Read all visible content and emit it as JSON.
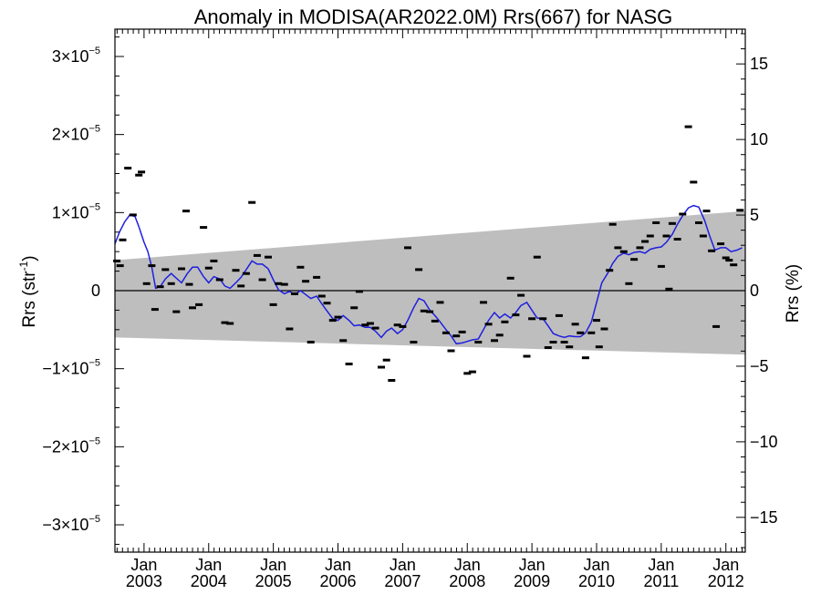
{
  "chart_data": {
    "type": "scatter",
    "title": "Anomaly in MODISA(AR2022.0M) Rrs(667) for NASG",
    "ylabel_left": {
      "base": "Rrs (str",
      "sup": "-1",
      "close": ")"
    },
    "ylabel_right": "Rrs (%)",
    "xlim": [
      2002.55,
      2012.3
    ],
    "ylim_left": [
      -3.35e-05,
      3.35e-05
    ],
    "ylim_right": [
      -17.3,
      17.3
    ],
    "left_ticks": [
      {
        "value": 3e-05,
        "label": "3×10",
        "exp": "−5"
      },
      {
        "value": 2e-05,
        "label": "2×10",
        "exp": "−5"
      },
      {
        "value": 1e-05,
        "label": "1×10",
        "exp": "−5"
      },
      {
        "value": 0,
        "label": "0",
        "exp": ""
      },
      {
        "value": -1e-05,
        "label": "−1×10",
        "exp": "−5"
      },
      {
        "value": -2e-05,
        "label": "−2×10",
        "exp": "−5"
      },
      {
        "value": -3e-05,
        "label": "−3×10",
        "exp": "−5"
      }
    ],
    "right_ticks": [
      {
        "value": 15,
        "label": "15"
      },
      {
        "value": 10,
        "label": "10"
      },
      {
        "value": 5,
        "label": "5"
      },
      {
        "value": 0,
        "label": "0"
      },
      {
        "value": -5,
        "label": "−5"
      },
      {
        "value": -10,
        "label": "−10"
      },
      {
        "value": -15,
        "label": "−15"
      }
    ],
    "x_ticks": [
      {
        "value": 2003.0,
        "month": "Jan",
        "year": "2003"
      },
      {
        "value": 2004.0,
        "month": "Jan",
        "year": "2004"
      },
      {
        "value": 2005.0,
        "month": "Jan",
        "year": "2005"
      },
      {
        "value": 2006.0,
        "month": "Jan",
        "year": "2006"
      },
      {
        "value": 2007.0,
        "month": "Jan",
        "year": "2007"
      },
      {
        "value": 2008.0,
        "month": "Jan",
        "year": "2008"
      },
      {
        "value": 2009.0,
        "month": "Jan",
        "year": "2009"
      },
      {
        "value": 2010.0,
        "month": "Jan",
        "year": "2010"
      },
      {
        "value": 2011.0,
        "month": "Jan",
        "year": "2011"
      },
      {
        "value": 2012.0,
        "month": "Jan",
        "year": "2012"
      }
    ],
    "band": {
      "color": "#bebebe",
      "upper": [
        [
          2002.55,
          3.9e-06
        ],
        [
          2012.3,
          1.02e-05
        ]
      ],
      "lower": [
        [
          2002.55,
          -6e-06
        ],
        [
          2012.3,
          -8.2e-06
        ]
      ]
    },
    "zero_line": 0,
    "series": [
      {
        "kind": "markers",
        "color": "#000000",
        "points": [
          [
            2002.58,
            3.8e-06
          ],
          [
            2002.63,
            3.2e-06
          ],
          [
            2002.67,
            6.5e-06
          ],
          [
            2002.75,
            1.57e-05
          ],
          [
            2002.83,
            9.7e-06
          ],
          [
            2002.92,
            1.48e-05
          ],
          [
            2002.96,
            1.52e-05
          ],
          [
            2003.04,
            9e-07
          ],
          [
            2003.12,
            3.2e-06
          ],
          [
            2003.17,
            -2.4e-06
          ],
          [
            2003.25,
            5e-07
          ],
          [
            2003.33,
            2.7e-06
          ],
          [
            2003.42,
            9e-07
          ],
          [
            2003.5,
            -2.7e-06
          ],
          [
            2003.58,
            2.8e-06
          ],
          [
            2003.65,
            1.02e-05
          ],
          [
            2003.7,
            8e-07
          ],
          [
            2003.75,
            -2.2e-06
          ],
          [
            2003.85,
            -1.8e-06
          ],
          [
            2003.92,
            8.1e-06
          ],
          [
            2004.0,
            2.9e-06
          ],
          [
            2004.08,
            3.8e-06
          ],
          [
            2004.17,
            1.4e-06
          ],
          [
            2004.25,
            -4.1e-06
          ],
          [
            2004.33,
            -4.2e-06
          ],
          [
            2004.42,
            2.6e-06
          ],
          [
            2004.5,
            6e-07
          ],
          [
            2004.58,
            2.2e-06
          ],
          [
            2004.67,
            1.13e-05
          ],
          [
            2004.75,
            4.5e-06
          ],
          [
            2004.83,
            1.4e-06
          ],
          [
            2004.92,
            4.3e-06
          ],
          [
            2005.0,
            -1.8e-06
          ],
          [
            2005.08,
            9e-07
          ],
          [
            2005.17,
            8e-07
          ],
          [
            2005.25,
            -4.9e-06
          ],
          [
            2005.33,
            -4e-07
          ],
          [
            2005.42,
            3e-06
          ],
          [
            2005.5,
            1.2e-06
          ],
          [
            2005.58,
            -6.6e-06
          ],
          [
            2005.67,
            1.7e-06
          ],
          [
            2005.75,
            -7e-07
          ],
          [
            2005.83,
            -1.6e-06
          ],
          [
            2005.92,
            -3.8e-06
          ],
          [
            2006.0,
            -3.4e-06
          ],
          [
            2006.08,
            -6.4e-06
          ],
          [
            2006.17,
            -9.4e-06
          ],
          [
            2006.25,
            -2.2e-06
          ],
          [
            2006.33,
            -1e-07
          ],
          [
            2006.42,
            -4.4e-06
          ],
          [
            2006.5,
            -4.2e-06
          ],
          [
            2006.58,
            -4.8e-06
          ],
          [
            2006.67,
            -9.8e-06
          ],
          [
            2006.75,
            -8.9e-06
          ],
          [
            2006.83,
            -1.15e-05
          ],
          [
            2006.92,
            -4.4e-06
          ],
          [
            2007.0,
            -4.6e-06
          ],
          [
            2007.08,
            5.5e-06
          ],
          [
            2007.17,
            -6.6e-06
          ],
          [
            2007.25,
            2.7e-06
          ],
          [
            2007.33,
            -2.6e-06
          ],
          [
            2007.42,
            -2.7e-06
          ],
          [
            2007.5,
            -3.9e-06
          ],
          [
            2007.58,
            -1.5e-06
          ],
          [
            2007.67,
            -5.4e-06
          ],
          [
            2007.75,
            -7.7e-06
          ],
          [
            2007.83,
            -5.8e-06
          ],
          [
            2007.92,
            -5.3e-06
          ],
          [
            2008.0,
            -1.06e-05
          ],
          [
            2008.08,
            -1.04e-05
          ],
          [
            2008.17,
            -6.6e-06
          ],
          [
            2008.25,
            -1.5e-06
          ],
          [
            2008.33,
            -4.3e-06
          ],
          [
            2008.42,
            -6.4e-06
          ],
          [
            2008.5,
            -5.7e-06
          ],
          [
            2008.58,
            -4e-06
          ],
          [
            2008.67,
            1.6e-06
          ],
          [
            2008.75,
            -3.1e-06
          ],
          [
            2008.83,
            -6e-07
          ],
          [
            2008.92,
            -8.4e-06
          ],
          [
            2009.0,
            -3.6e-06
          ],
          [
            2009.08,
            4.3e-06
          ],
          [
            2009.17,
            -3.6e-06
          ],
          [
            2009.25,
            -7.3e-06
          ],
          [
            2009.33,
            -6.6e-06
          ],
          [
            2009.42,
            -3.2e-06
          ],
          [
            2009.5,
            -6.6e-06
          ],
          [
            2009.58,
            -7.2e-06
          ],
          [
            2009.67,
            -4.3e-06
          ],
          [
            2009.75,
            -5.4e-06
          ],
          [
            2009.83,
            -8.6e-06
          ],
          [
            2009.92,
            -5.4e-06
          ],
          [
            2010.0,
            -3.8e-06
          ],
          [
            2010.04,
            -7.2e-06
          ],
          [
            2010.12,
            -4.9e-06
          ],
          [
            2010.2,
            2.6e-06
          ],
          [
            2010.25,
            8.5e-06
          ],
          [
            2010.33,
            5.5e-06
          ],
          [
            2010.42,
            5e-06
          ],
          [
            2010.5,
            9e-07
          ],
          [
            2010.58,
            4e-06
          ],
          [
            2010.67,
            5.5e-06
          ],
          [
            2010.75,
            6.3e-06
          ],
          [
            2010.83,
            7e-06
          ],
          [
            2010.92,
            8.7e-06
          ],
          [
            2011.0,
            3.1e-06
          ],
          [
            2011.08,
            7e-06
          ],
          [
            2011.12,
            2e-07
          ],
          [
            2011.17,
            8.6e-06
          ],
          [
            2011.25,
            6.6e-06
          ],
          [
            2011.33,
            9.8e-06
          ],
          [
            2011.42,
            2.1e-05
          ],
          [
            2011.5,
            1.39e-05
          ],
          [
            2011.58,
            8.7e-06
          ],
          [
            2011.65,
            7e-06
          ],
          [
            2011.7,
            1.02e-05
          ],
          [
            2011.78,
            5.1e-06
          ],
          [
            2011.85,
            -4.6e-06
          ],
          [
            2011.92,
            6e-06
          ],
          [
            2012.0,
            4.2e-06
          ],
          [
            2012.05,
            3.9e-06
          ],
          [
            2012.12,
            3.3e-06
          ],
          [
            2012.22,
            1.03e-05
          ]
        ]
      },
      {
        "kind": "line",
        "color": "#1f1fe0",
        "points": [
          [
            2002.55,
            6e-06
          ],
          [
            2002.62,
            7.5e-06
          ],
          [
            2002.7,
            8.8e-06
          ],
          [
            2002.78,
            9.7e-06
          ],
          [
            2002.86,
            9.5e-06
          ],
          [
            2002.92,
            8.2e-06
          ],
          [
            2003.0,
            6.2e-06
          ],
          [
            2003.06,
            5e-06
          ],
          [
            2003.12,
            3e-06
          ],
          [
            2003.18,
            3e-07
          ],
          [
            2003.25,
            5e-07
          ],
          [
            2003.33,
            1.5e-06
          ],
          [
            2003.42,
            2.2e-06
          ],
          [
            2003.5,
            1.6e-06
          ],
          [
            2003.58,
            1e-06
          ],
          [
            2003.67,
            2.2e-06
          ],
          [
            2003.75,
            3e-06
          ],
          [
            2003.83,
            3e-06
          ],
          [
            2003.92,
            1.8e-06
          ],
          [
            2004.0,
            1e-06
          ],
          [
            2004.08,
            1.8e-06
          ],
          [
            2004.17,
            1.5e-06
          ],
          [
            2004.25,
            6e-07
          ],
          [
            2004.33,
            3e-07
          ],
          [
            2004.42,
            1e-06
          ],
          [
            2004.5,
            1.7e-06
          ],
          [
            2004.58,
            2.7e-06
          ],
          [
            2004.67,
            3.8e-06
          ],
          [
            2004.75,
            3.4e-06
          ],
          [
            2004.83,
            3.4e-06
          ],
          [
            2004.92,
            2.8e-06
          ],
          [
            2005.0,
            1.4e-06
          ],
          [
            2005.08,
            1e-07
          ],
          [
            2005.17,
            -4e-07
          ],
          [
            2005.25,
            -1e-07
          ],
          [
            2005.33,
            -5e-07
          ],
          [
            2005.42,
            0.0
          ],
          [
            2005.5,
            -5e-07
          ],
          [
            2005.58,
            -1e-06
          ],
          [
            2005.67,
            -7e-07
          ],
          [
            2005.75,
            -1.7e-06
          ],
          [
            2005.83,
            -2.6e-06
          ],
          [
            2005.92,
            -3.6e-06
          ],
          [
            2006.0,
            -3.8e-06
          ],
          [
            2006.08,
            -3.2e-06
          ],
          [
            2006.17,
            -3.8e-06
          ],
          [
            2006.25,
            -4.5e-06
          ],
          [
            2006.33,
            -4.4e-06
          ],
          [
            2006.42,
            -4.7e-06
          ],
          [
            2006.5,
            -4.7e-06
          ],
          [
            2006.58,
            -5.2e-06
          ],
          [
            2006.67,
            -6e-06
          ],
          [
            2006.75,
            -5.2e-06
          ],
          [
            2006.83,
            -4.8e-06
          ],
          [
            2006.92,
            -5.5e-06
          ],
          [
            2007.0,
            -5e-06
          ],
          [
            2007.08,
            -3.8e-06
          ],
          [
            2007.17,
            -2.2e-06
          ],
          [
            2007.25,
            -1e-06
          ],
          [
            2007.33,
            -1.3e-06
          ],
          [
            2007.42,
            -2.5e-06
          ],
          [
            2007.5,
            -3.2e-06
          ],
          [
            2007.58,
            -4e-06
          ],
          [
            2007.67,
            -5e-06
          ],
          [
            2007.75,
            -5.8e-06
          ],
          [
            2007.83,
            -6.8e-06
          ],
          [
            2007.92,
            -6.7e-06
          ],
          [
            2008.0,
            -6.5e-06
          ],
          [
            2008.08,
            -6.3e-06
          ],
          [
            2008.17,
            -6.2e-06
          ],
          [
            2008.25,
            -5e-06
          ],
          [
            2008.33,
            -3.8e-06
          ],
          [
            2008.42,
            -2.8e-06
          ],
          [
            2008.5,
            -3.5e-06
          ],
          [
            2008.58,
            -3e-06
          ],
          [
            2008.67,
            -3.5e-06
          ],
          [
            2008.75,
            -2.8e-06
          ],
          [
            2008.83,
            -1.9e-06
          ],
          [
            2008.92,
            -1.5e-06
          ],
          [
            2009.0,
            -2.5e-06
          ],
          [
            2009.08,
            -3.5e-06
          ],
          [
            2009.17,
            -3.6e-06
          ],
          [
            2009.25,
            -4.5e-06
          ],
          [
            2009.33,
            -5.5e-06
          ],
          [
            2009.42,
            -5.8e-06
          ],
          [
            2009.5,
            -6e-06
          ],
          [
            2009.58,
            -5.8e-06
          ],
          [
            2009.67,
            -5.9e-06
          ],
          [
            2009.75,
            -5.9e-06
          ],
          [
            2009.83,
            -5.4e-06
          ],
          [
            2009.92,
            -4e-06
          ],
          [
            2010.0,
            -1.5e-06
          ],
          [
            2010.08,
            1e-06
          ],
          [
            2010.17,
            2.2e-06
          ],
          [
            2010.25,
            3.5e-06
          ],
          [
            2010.33,
            4.4e-06
          ],
          [
            2010.42,
            4.8e-06
          ],
          [
            2010.5,
            4.6e-06
          ],
          [
            2010.58,
            4.9e-06
          ],
          [
            2010.67,
            5e-06
          ],
          [
            2010.75,
            4.8e-06
          ],
          [
            2010.83,
            5.3e-06
          ],
          [
            2010.92,
            5.5e-06
          ],
          [
            2011.0,
            5.6e-06
          ],
          [
            2011.08,
            6.2e-06
          ],
          [
            2011.17,
            7.2e-06
          ],
          [
            2011.25,
            8.5e-06
          ],
          [
            2011.33,
            9.6e-06
          ],
          [
            2011.42,
            1.06e-05
          ],
          [
            2011.5,
            1.09e-05
          ],
          [
            2011.58,
            1.07e-05
          ],
          [
            2011.67,
            9e-06
          ],
          [
            2011.75,
            7e-06
          ],
          [
            2011.83,
            5.2e-06
          ],
          [
            2011.92,
            5.5e-06
          ],
          [
            2012.0,
            5.5e-06
          ],
          [
            2012.08,
            5e-06
          ],
          [
            2012.17,
            5.2e-06
          ],
          [
            2012.25,
            5.5e-06
          ]
        ]
      }
    ],
    "grid": false,
    "legend": "none"
  }
}
